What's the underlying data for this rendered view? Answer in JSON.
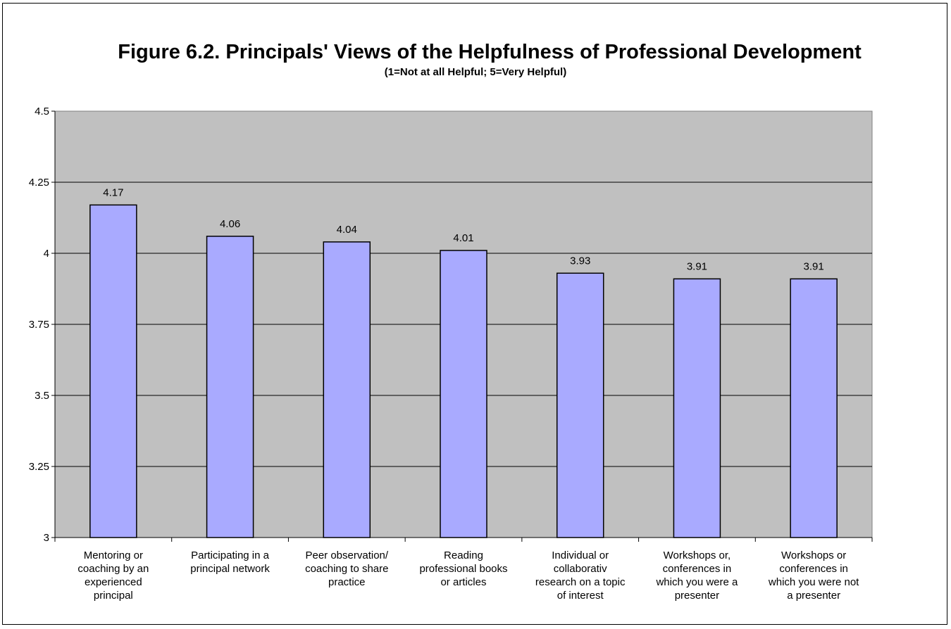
{
  "chart_data": {
    "type": "bar",
    "title": "Figure 6.2.  Principals' Views of the Helpfulness of Professional Development",
    "subtitle": "(1=Not at all Helpful; 5=Very Helpful)",
    "xlabel": "",
    "ylabel": "",
    "ylim": [
      3,
      4.5
    ],
    "yticks": [
      "4.5",
      "4.25",
      "4",
      "3.75",
      "3.5",
      "3.25",
      "3"
    ],
    "grid": true,
    "categories": [
      "Mentoring or coaching by an experienced principal",
      "Participating in a principal network",
      "Peer observation/ coaching to share practice",
      "Reading professional books or articles",
      "Individual or collaborativ research on a topic of interest",
      "Workshops or, conferences in which you were a presenter",
      "Workshops or conferences in which you were not a presenter"
    ],
    "values": [
      4.17,
      4.06,
      4.04,
      4.01,
      3.93,
      3.91,
      3.91
    ],
    "data_labels": [
      "4.17",
      "4.06",
      "4.04",
      "4.01",
      "3.93",
      "3.91",
      "3.91"
    ],
    "colors": {
      "bar": "#A9AAFF",
      "plot_bg": "#C0C0C0",
      "gridline": "#000000"
    }
  }
}
